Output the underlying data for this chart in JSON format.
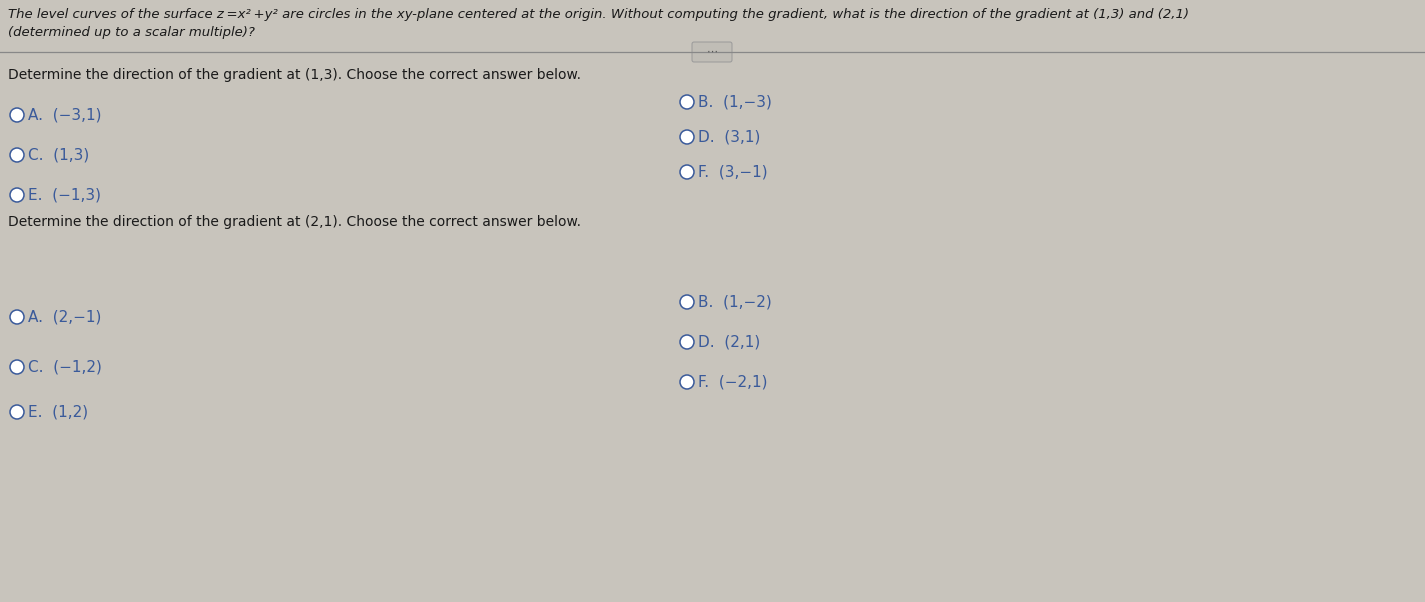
{
  "bg_color": "#c8c4bc",
  "text_color": "#1a1a1a",
  "blue_color": "#3a5a9a",
  "header_text_line1": "The level curves of the surface z =x² +y² are circles in the xy-plane centered at the origin. Without computing the gradient, what is the direction of the gradient at (1,3) and (2,1)",
  "header_text_line2": "(determined up to a scalar multiple)?",
  "section1_prompt": "Determine the direction of the gradient at (1,3). Choose the correct answer below.",
  "section1_left": [
    {
      "label": "A.",
      "value": "(−3,1)"
    },
    {
      "label": "C.",
      "value": "(1,3)"
    },
    {
      "label": "E.",
      "value": "(−1,3)"
    }
  ],
  "section1_right": [
    {
      "label": "B.",
      "value": "(1,−3)"
    },
    {
      "label": "D.",
      "value": "(3,1)"
    },
    {
      "label": "F.",
      "value": "(3,−1)"
    }
  ],
  "section2_prompt": "Determine the direction of the gradient at (2,1). Choose the correct answer below.",
  "section2_left": [
    {
      "label": "A.",
      "value": "(2,−1)"
    },
    {
      "label": "C.",
      "value": "(−1,2)"
    },
    {
      "label": "E.",
      "value": "(1,2)"
    }
  ],
  "section2_right": [
    {
      "label": "B.",
      "value": "(1,−2)"
    },
    {
      "label": "D.",
      "value": "(2,1)"
    },
    {
      "label": "F.",
      "value": "(−2,1)"
    }
  ]
}
